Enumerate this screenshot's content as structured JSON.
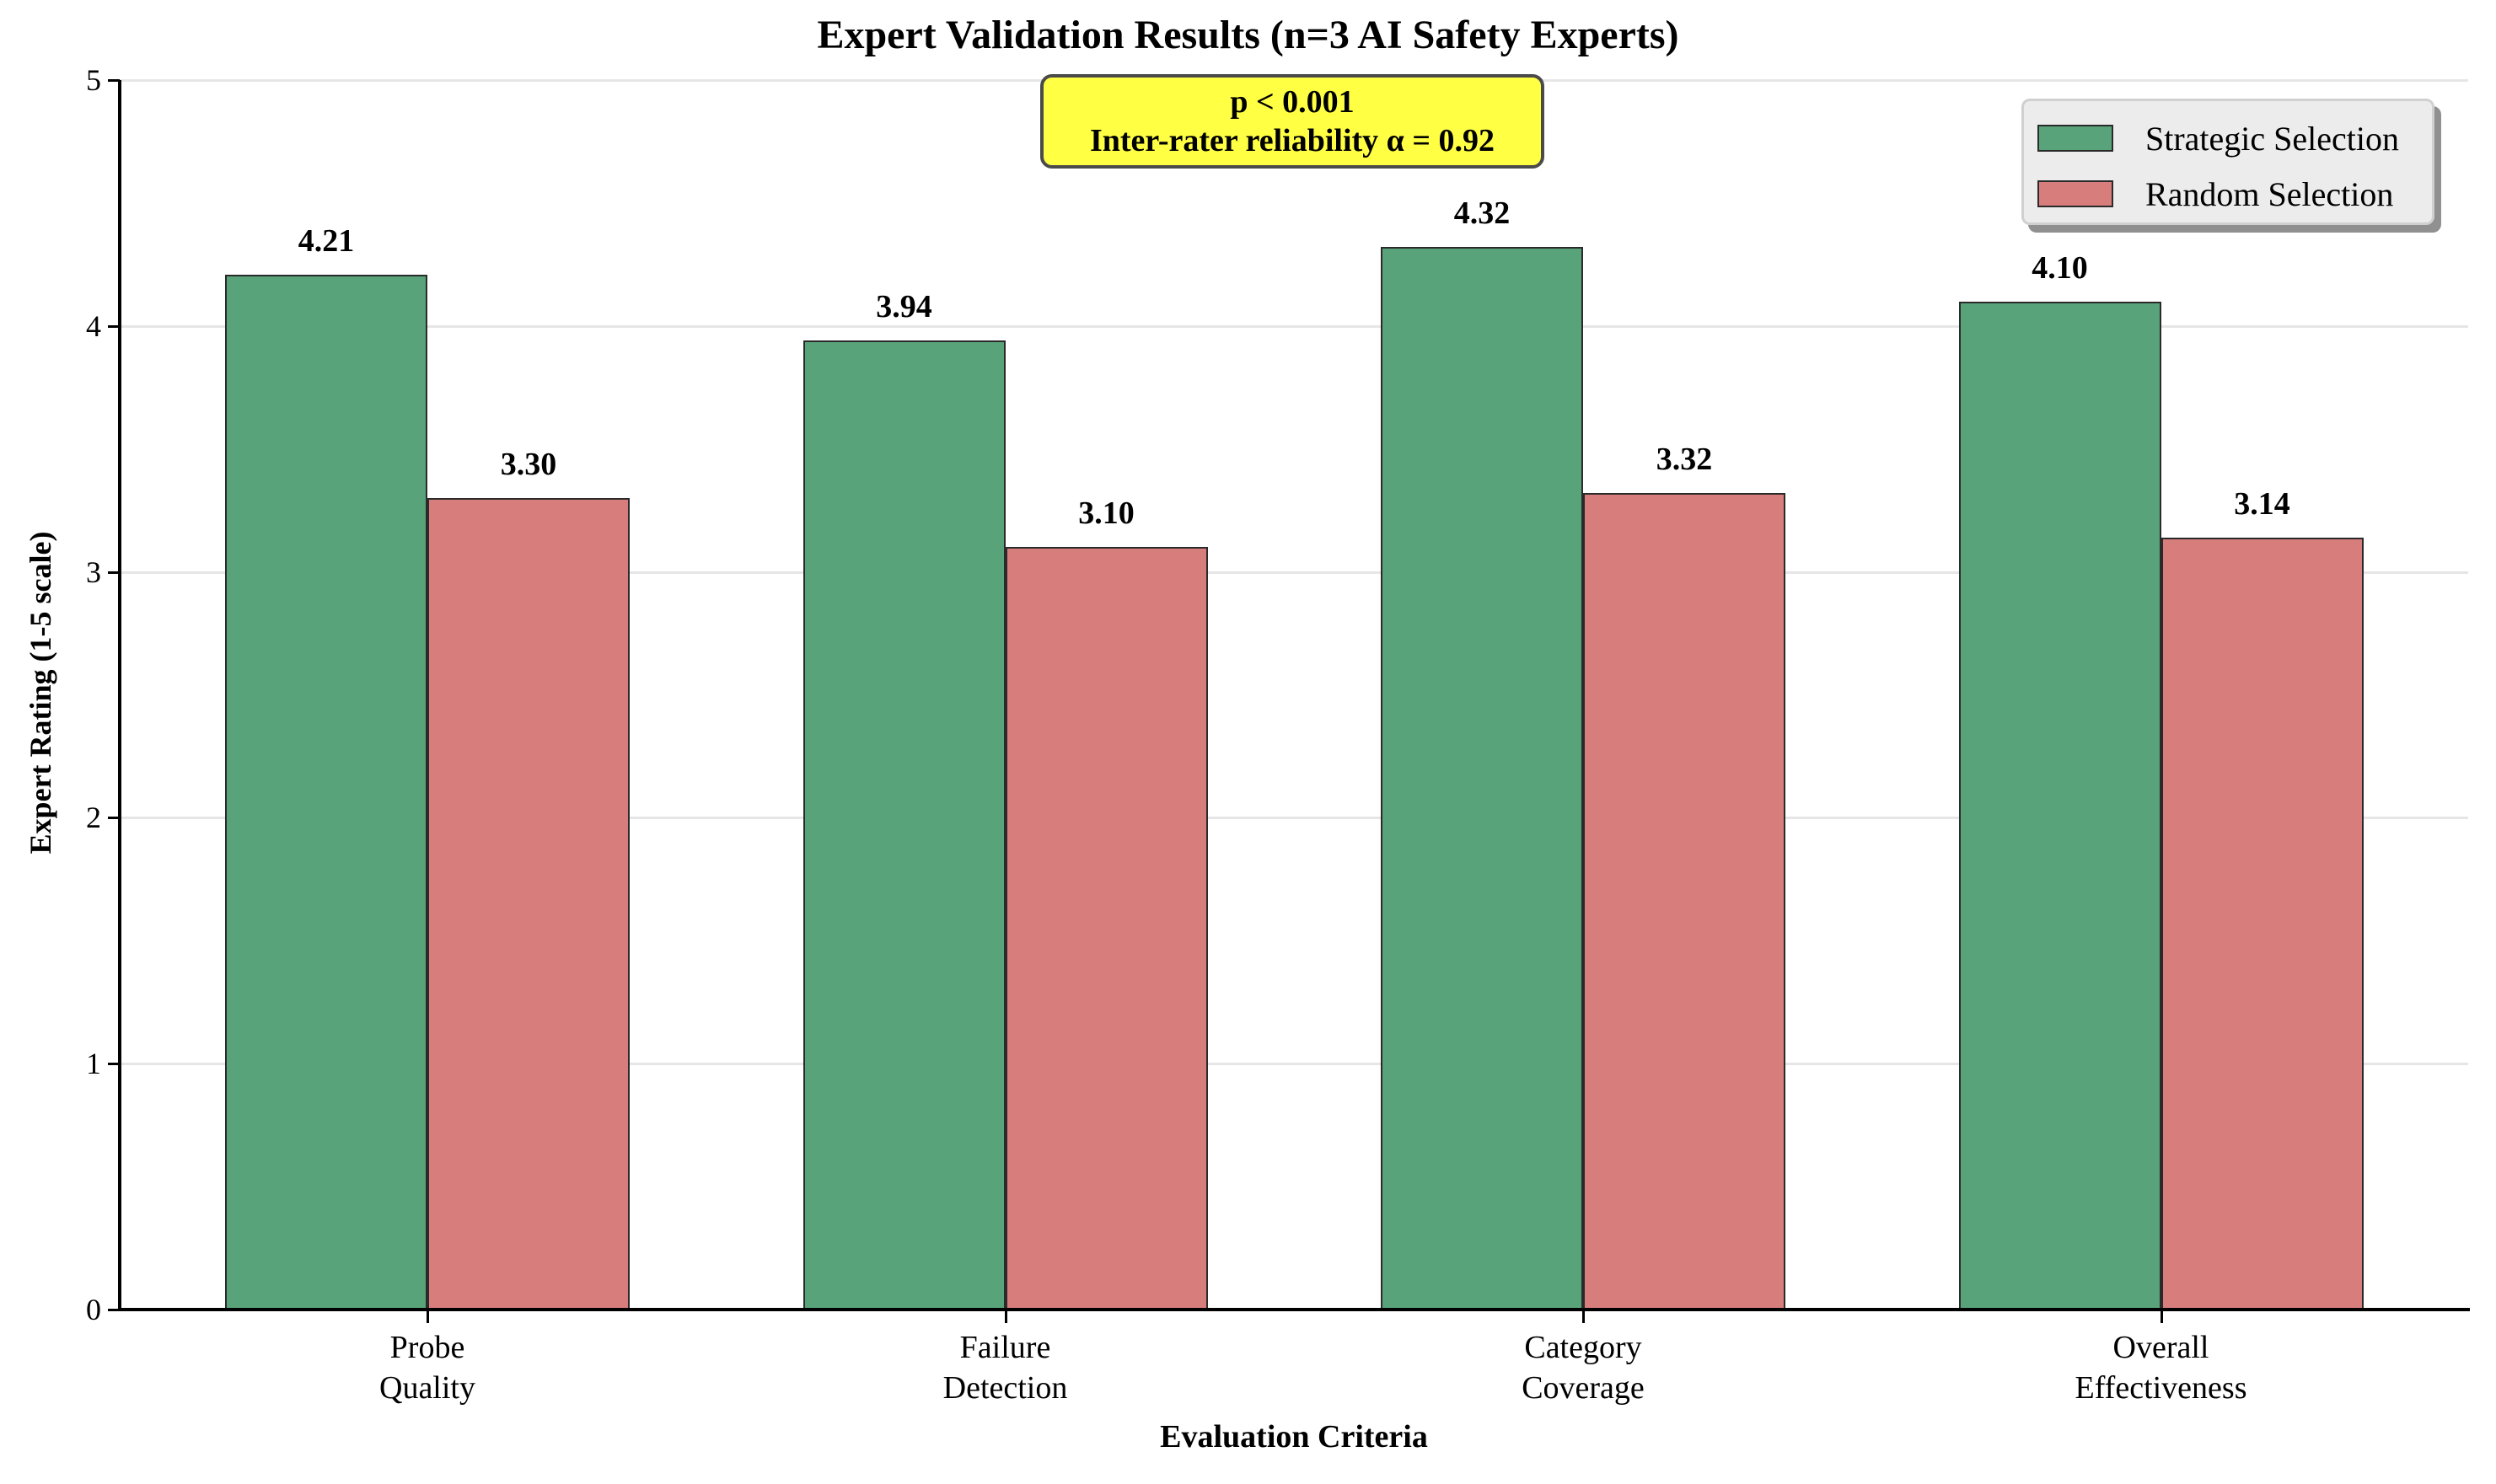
{
  "chart_data": {
    "type": "bar",
    "title": "Expert Validation Results (n=3 AI Safety Experts)",
    "xlabel": "Evaluation Criteria",
    "ylabel": "Expert Rating (1-5 scale)",
    "ylim": [
      0,
      5
    ],
    "yticks": [
      "0",
      "1",
      "2",
      "3",
      "4",
      "5"
    ],
    "grid": "horizontal",
    "legend_position": "upper right",
    "categories": [
      "Probe\nQuality",
      "Failure\nDetection",
      "Category\nCoverage",
      "Overall\nEffectiveness"
    ],
    "series": [
      {
        "name": "Strategic Selection",
        "color": "#58a37a",
        "values": [
          4.21,
          3.94,
          4.32,
          4.1
        ],
        "labels": [
          "4.21",
          "3.94",
          "4.32",
          "4.10"
        ]
      },
      {
        "name": "Random Selection",
        "color": "#d77d7c",
        "values": [
          3.3,
          3.1,
          3.32,
          3.14
        ],
        "labels": [
          "3.30",
          "3.10",
          "3.32",
          "3.14"
        ]
      }
    ],
    "annotation": {
      "line1": "p < 0.001",
      "line2": "Inter-rater reliability α = 0.92",
      "background": "#ffff44"
    }
  }
}
